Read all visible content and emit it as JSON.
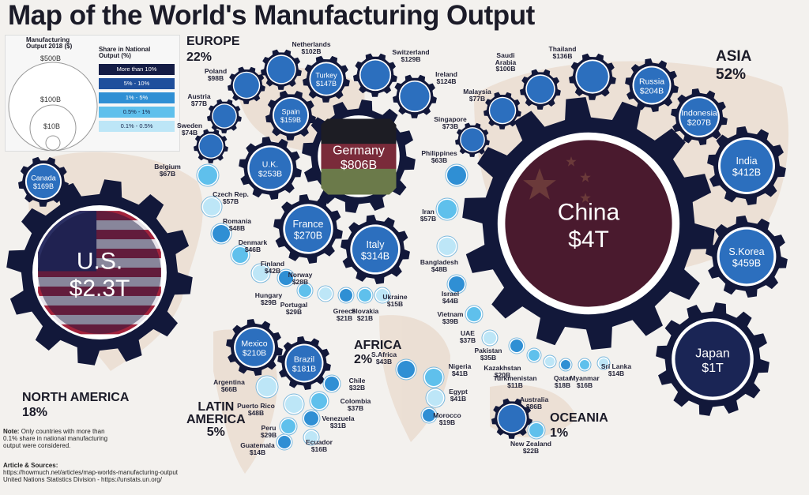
{
  "title": "Map of the World's Manufacturing Output",
  "regions": {
    "europe": {
      "name": "EUROPE",
      "share": "22%"
    },
    "asia": {
      "name": "ASIA",
      "share": "52%"
    },
    "north_america": {
      "name": "NORTH AMERICA",
      "share": "18%"
    },
    "latin_america": {
      "name_line1": "LATIN",
      "name_line2": "AMERICA",
      "share": "5%"
    },
    "africa": {
      "name": "AFRICA",
      "share": "2%"
    },
    "oceania": {
      "name": "OCEANIA",
      "share": "1%"
    }
  },
  "legend": {
    "size_title_l1": "Manufacturing",
    "size_title_l2": "Output 2018 ($)",
    "sizes": [
      "$500B",
      "$100B",
      "$10B"
    ],
    "share_title_l1": "Share in National",
    "share_title_l2": "Output (%)",
    "bins": [
      "More than 10%",
      "5% - 10%",
      "1% - 5%",
      "0.5% - 1%",
      "0.1% - 0.5%"
    ],
    "bin_colors": [
      "#141c45",
      "#1f4f9c",
      "#2f8fd4",
      "#5fc0ec",
      "#bde6f7"
    ]
  },
  "gears": [
    {
      "id": "us",
      "line1": "U.S.",
      "line2": "$2.3T"
    },
    {
      "id": "china",
      "line1": "China",
      "line2": "$4T"
    },
    {
      "id": "germany",
      "line1": "Germany",
      "line2": "$806B"
    },
    {
      "id": "japan",
      "line1": "Japan",
      "line2": "$1T"
    },
    {
      "id": "skorea",
      "line1": "S.Korea",
      "line2": "$459B"
    },
    {
      "id": "india",
      "line1": "India",
      "line2": "$412B"
    },
    {
      "id": "italy",
      "line1": "Italy",
      "line2": "$314B"
    },
    {
      "id": "france",
      "line1": "France",
      "line2": "$270B"
    },
    {
      "id": "uk",
      "line1": "U.K.",
      "line2": "$253B"
    },
    {
      "id": "mexico",
      "line1": "Mexico",
      "line2": "$210B"
    },
    {
      "id": "indonesia",
      "line1": "Indonesia",
      "line2": "$207B"
    },
    {
      "id": "russia",
      "line1": "Russia",
      "line2": "$204B"
    },
    {
      "id": "brazil",
      "line1": "Brazil",
      "line2": "$181B"
    },
    {
      "id": "canada",
      "line1": "Canada",
      "line2": "$169B"
    },
    {
      "id": "spain",
      "line1": "Spain",
      "line2": "$159B"
    },
    {
      "id": "turkey",
      "line1": "Turkey",
      "line2": "$147B"
    },
    {
      "id": "switzerland",
      "line1": "",
      "line2": ""
    },
    {
      "id": "netherlands",
      "line1": "",
      "line2": ""
    },
    {
      "id": "ireland",
      "line1": "",
      "line2": ""
    },
    {
      "id": "thailand",
      "line1": "",
      "line2": ""
    },
    {
      "id": "saudi",
      "line1": "",
      "line2": ""
    },
    {
      "id": "poland",
      "line1": "",
      "line2": ""
    },
    {
      "id": "malaysia",
      "line1": "",
      "line2": ""
    },
    {
      "id": "austria",
      "line1": "",
      "line2": ""
    },
    {
      "id": "sweden",
      "line1": "",
      "line2": ""
    },
    {
      "id": "singapore",
      "line1": "",
      "line2": ""
    },
    {
      "id": "australia",
      "line1": "",
      "line2": ""
    }
  ],
  "labels": [
    {
      "id": "netherlands",
      "l1": "Netherlands",
      "l2": "$102B"
    },
    {
      "id": "switzerland",
      "l1": "Switzerland",
      "l2": "$129B"
    },
    {
      "id": "ireland",
      "l1": "Ireland",
      "l2": "$124B"
    },
    {
      "id": "saudi",
      "l1": "Saudi",
      "l2": "Arabia",
      "l3": "$100B"
    },
    {
      "id": "thailand",
      "l1": "Thailand",
      "l2": "$136B"
    },
    {
      "id": "poland",
      "l1": "Poland",
      "l2": "$98B"
    },
    {
      "id": "austria",
      "l1": "Austria",
      "l2": "$77B"
    },
    {
      "id": "sweden",
      "l1": "Sweden",
      "l2": "$74B"
    },
    {
      "id": "malaysia",
      "l1": "Malaysia",
      "l2": "$77B"
    },
    {
      "id": "singapore",
      "l1": "Singapore",
      "l2": "$73B"
    },
    {
      "id": "philippines",
      "l1": "Philippines",
      "l2": "$63B"
    },
    {
      "id": "belgium",
      "l1": "Belgium",
      "l2": "$67B"
    },
    {
      "id": "czech",
      "l1": "Czech Rep.",
      "l2": "$57B"
    },
    {
      "id": "romania",
      "l1": "Romania",
      "l2": "$48B"
    },
    {
      "id": "denmark",
      "l1": "Denmark",
      "l2": "$46B"
    },
    {
      "id": "finland",
      "l1": "Finland",
      "l2": "$42B"
    },
    {
      "id": "norway",
      "l1": "Norway",
      "l2": "$28B"
    },
    {
      "id": "hungary",
      "l1": "Hungary",
      "l2": "$29B"
    },
    {
      "id": "portugal",
      "l1": "Portugal",
      "l2": "$29B"
    },
    {
      "id": "greece",
      "l1": "Greece",
      "l2": "$21B"
    },
    {
      "id": "slovakia",
      "l1": "Slovakia",
      "l2": "$21B"
    },
    {
      "id": "ukraine",
      "l1": "Ukraine",
      "l2": "$15B"
    },
    {
      "id": "iran",
      "l1": "Iran",
      "l2": "$57B"
    },
    {
      "id": "bangladesh",
      "l1": "Bangladesh",
      "l2": "$48B"
    },
    {
      "id": "israel",
      "l1": "Israel",
      "l2": "$44B"
    },
    {
      "id": "vietnam",
      "l1": "Vietnam",
      "l2": "$39B"
    },
    {
      "id": "uae",
      "l1": "UAE",
      "l2": "$37B"
    },
    {
      "id": "pakistan",
      "l1": "Pakistan",
      "l2": "$35B"
    },
    {
      "id": "kazakhstan",
      "l1": "Kazakhstan",
      "l2": "$20B"
    },
    {
      "id": "turkmenistan",
      "l1": "Turkmenistan",
      "l2": "$11B"
    },
    {
      "id": "qatar",
      "l1": "Qatar",
      "l2": "$18B"
    },
    {
      "id": "myanmar",
      "l1": "Myanmar",
      "l2": "$16B"
    },
    {
      "id": "srilanka",
      "l1": "Sri Lanka",
      "l2": "$14B"
    },
    {
      "id": "safrica",
      "l1": "S.Africa",
      "l2": "$43B"
    },
    {
      "id": "nigeria",
      "l1": "Nigeria",
      "l2": "$41B"
    },
    {
      "id": "egypt",
      "l1": "Egypt",
      "l2": "$41B"
    },
    {
      "id": "morocco",
      "l1": "Morocco",
      "l2": "$19B"
    },
    {
      "id": "australia",
      "l1": "Australia",
      "l2": "$86B"
    },
    {
      "id": "newzealand",
      "l1": "New Zealand",
      "l2": "$22B"
    },
    {
      "id": "argentina",
      "l1": "Argentina",
      "l2": "$66B"
    },
    {
      "id": "chile",
      "l1": "Chile",
      "l2": "$32B"
    },
    {
      "id": "colombia",
      "l1": "Colombia",
      "l2": "$37B"
    },
    {
      "id": "puertorico",
      "l1": "Puerto Rico",
      "l2": "$48B"
    },
    {
      "id": "venezuela",
      "l1": "Venezuela",
      "l2": "$31B"
    },
    {
      "id": "peru",
      "l1": "Peru",
      "l2": "$29B"
    },
    {
      "id": "ecuador",
      "l1": "Ecuador",
      "l2": "$16B"
    },
    {
      "id": "guatemala",
      "l1": "Guatemala",
      "l2": "$14B"
    }
  ],
  "note": {
    "label": "Note:",
    "text1": "Only countries with more than",
    "text2": "0.1% share in national manufacturing",
    "text3": "output were considered.",
    "sources_label": "Article & Sources:",
    "source1": "https://howmuch.net/articles/map-worlds-manufacturing-output",
    "source2": "United Nations Statistics Division - https://unstats.un.org/"
  },
  "colors": {
    "gear_dark": "#12183a",
    "ring_blue": "#2f79c8",
    "china_fill": "#4a1a2e",
    "usa_blue": "#2b2f63",
    "usa_red": "#a3233c",
    "germany_black": "#1d1d24",
    "germany_red": "#7a2b3a",
    "germany_gold": "#6b7a4a"
  }
}
